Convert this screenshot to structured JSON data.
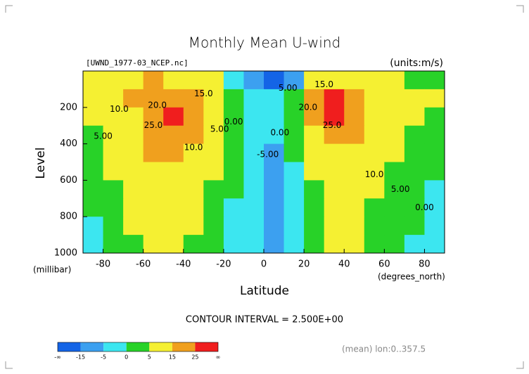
{
  "chart_data": {
    "type": "contour",
    "title": "Monthly Mean U-wind",
    "subtitle": "[UWND_1977-03_NCEP.nc]",
    "units": "(units:m/s)",
    "ylabel": "Level",
    "yunits": "(millibar)",
    "xlabel": "Latitude",
    "xunits": "(degrees_north)",
    "xlim": [
      -90,
      90
    ],
    "xticks": [
      -80,
      -60,
      -40,
      -20,
      0,
      20,
      40,
      60,
      80
    ],
    "ylim": [
      1000,
      0
    ],
    "yticks": [
      200,
      400,
      600,
      800,
      1000
    ],
    "x": [
      -85,
      -75,
      -65,
      -55,
      -45,
      -35,
      -25,
      -15,
      -5,
      5,
      15,
      25,
      35,
      45,
      55,
      65,
      75,
      85
    ],
    "y": [
      50,
      150,
      250,
      350,
      450,
      550,
      650,
      750,
      850,
      950
    ],
    "z": [
      [
        5,
        8,
        12,
        15,
        14,
        10,
        5,
        -3,
        -12,
        -16,
        -8,
        5,
        12,
        12,
        8,
        5,
        3,
        3
      ],
      [
        5,
        8,
        15,
        22,
        22,
        17,
        10,
        2,
        -3,
        -3,
        2,
        15,
        25,
        20,
        12,
        8,
        6,
        5
      ],
      [
        5,
        8,
        14,
        24,
        27,
        20,
        10,
        3,
        -1,
        -2,
        3,
        15,
        27,
        22,
        12,
        8,
        5,
        4
      ],
      [
        4,
        7,
        12,
        20,
        22,
        16,
        8,
        2,
        -2,
        -3,
        2,
        10,
        20,
        17,
        10,
        7,
        4,
        3
      ],
      [
        3,
        6,
        10,
        16,
        16,
        12,
        6,
        1,
        -3,
        -6,
        0,
        7,
        14,
        13,
        8,
        5,
        3,
        2
      ],
      [
        2,
        5,
        9,
        14,
        14,
        10,
        5,
        0,
        -3,
        -6,
        -1,
        5,
        11,
        10,
        6,
        4,
        2,
        1
      ],
      [
        1,
        4,
        8,
        13,
        12,
        9,
        4,
        0,
        -2,
        -6,
        -2,
        4,
        9,
        8,
        5,
        3,
        1,
        -1
      ],
      [
        0,
        3,
        7,
        11,
        11,
        8,
        3,
        -1,
        -2,
        -6,
        -3,
        3,
        8,
        7,
        4,
        2,
        0,
        -1
      ],
      [
        -1,
        2,
        6,
        10,
        10,
        6,
        2,
        -1,
        -2,
        -6,
        -3,
        2,
        7,
        6,
        3,
        1,
        0,
        -1
      ],
      [
        -1,
        1,
        4,
        7,
        8,
        4,
        1,
        -2,
        -3,
        -6,
        -3,
        1,
        5,
        5,
        2,
        1,
        -1,
        -1
      ]
    ],
    "annotations": [
      {
        "text": "20.0",
        "x": -53,
        "y": 190
      },
      {
        "text": "15.0",
        "x": -30,
        "y": 125
      },
      {
        "text": "10.0",
        "x": -72,
        "y": 210
      },
      {
        "text": "5.00",
        "x": -80,
        "y": 360
      },
      {
        "text": "25.0",
        "x": -55,
        "y": 300
      },
      {
        "text": "10.0",
        "x": -35,
        "y": 420
      },
      {
        "text": "5.00",
        "x": -22,
        "y": 320
      },
      {
        "text": "0.00",
        "x": -15,
        "y": 280
      },
      {
        "text": "5.00",
        "x": 12,
        "y": 95
      },
      {
        "text": "0.00",
        "x": 8,
        "y": 340
      },
      {
        "text": "-5.00",
        "x": 2,
        "y": 460
      },
      {
        "text": "15.0",
        "x": 30,
        "y": 75
      },
      {
        "text": "20.0",
        "x": 22,
        "y": 200
      },
      {
        "text": "25.0",
        "x": 34,
        "y": 300
      },
      {
        "text": "10.0",
        "x": 55,
        "y": 570
      },
      {
        "text": "5.00",
        "x": 68,
        "y": 650
      },
      {
        "text": "0.00",
        "x": 80,
        "y": 750
      }
    ],
    "note": "CONTOUR INTERVAL = 2.500E+00",
    "footer": "(mean) lon:0..357.5",
    "colorbar": {
      "levels": [
        -15,
        -5,
        0,
        5,
        15,
        25
      ],
      "low_label": "-∞",
      "high_label": "∞",
      "colors": [
        "#1464e6",
        "#3ca0f0",
        "#3ce6f0",
        "#28d228",
        "#f5f032",
        "#f0a01e",
        "#f01e1e"
      ]
    }
  }
}
